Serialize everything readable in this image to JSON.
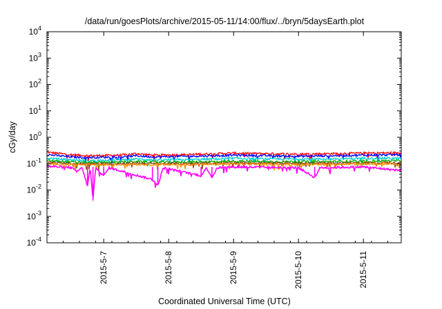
{
  "chart_data": {
    "type": "line",
    "title": "/data/run/goesPlots/archive/2015-05-11/14:00/flux/../bryn/5daysEarth.plot",
    "xlabel": "Coordinated Universal Time (UTC)",
    "ylabel": "cGy/day",
    "y_scale": "log",
    "ylim": [
      0.0001,
      10000
    ],
    "xlim": [
      "2015-05-06T03:00",
      "2015-05-11T14:00"
    ],
    "y_ticks": [
      {
        "base": "10",
        "exp": "-4",
        "value": 0.0001
      },
      {
        "base": "10",
        "exp": "-3",
        "value": 0.001
      },
      {
        "base": "10",
        "exp": "-2",
        "value": 0.01
      },
      {
        "base": "10",
        "exp": "-1",
        "value": 0.1
      },
      {
        "base": "10",
        "exp": "0",
        "value": 1
      },
      {
        "base": "10",
        "exp": "1",
        "value": 10
      },
      {
        "base": "10",
        "exp": "2",
        "value": 100
      },
      {
        "base": "10",
        "exp": "3",
        "value": 1000
      },
      {
        "base": "10",
        "exp": "4",
        "value": 10000
      }
    ],
    "x_ticks": [
      {
        "label": "2015-5-7",
        "value": "2015-05-07T00:00"
      },
      {
        "label": "2015-5-8",
        "value": "2015-05-08T00:00"
      },
      {
        "label": "2015-5-9",
        "value": "2015-05-09T00:00"
      },
      {
        "label": "2015-5-10",
        "value": "2015-05-10T00:00"
      },
      {
        "label": "2015-5-11",
        "value": "2015-05-11T00:00"
      }
    ],
    "grid": false,
    "series": [
      {
        "color": "#ff0000",
        "level": 0.24,
        "values": [
          [
            "2015-05-06T03:00",
            0.27
          ],
          [
            "2015-05-06T12:00",
            0.22
          ],
          [
            "2015-05-06T18:00",
            0.2
          ],
          [
            "2015-05-07T06:00",
            0.21
          ],
          [
            "2015-05-07T12:00",
            0.24
          ],
          [
            "2015-05-07T18:00",
            0.21
          ],
          [
            "2015-05-08T06:00",
            0.22
          ],
          [
            "2015-05-08T18:00",
            0.24
          ],
          [
            "2015-05-09T00:00",
            0.25
          ],
          [
            "2015-05-09T12:00",
            0.24
          ],
          [
            "2015-05-10T00:00",
            0.23
          ],
          [
            "2015-05-10T12:00",
            0.24
          ],
          [
            "2015-05-11T00:00",
            0.25
          ],
          [
            "2015-05-11T14:00",
            0.26
          ]
        ]
      },
      {
        "color": "#0000ff",
        "level": 0.2,
        "values": [
          [
            "2015-05-06T03:00",
            0.22
          ],
          [
            "2015-05-06T12:00",
            0.18
          ],
          [
            "2015-05-06T18:00",
            0.17
          ],
          [
            "2015-05-07T06:00",
            0.18
          ],
          [
            "2015-05-07T12:00",
            0.2
          ],
          [
            "2015-05-07T18:00",
            0.18
          ],
          [
            "2015-05-08T06:00",
            0.19
          ],
          [
            "2015-05-08T18:00",
            0.2
          ],
          [
            "2015-05-09T00:00",
            0.21
          ],
          [
            "2015-05-09T12:00",
            0.2
          ],
          [
            "2015-05-10T00:00",
            0.19
          ],
          [
            "2015-05-10T12:00",
            0.2
          ],
          [
            "2015-05-11T00:00",
            0.21
          ],
          [
            "2015-05-11T14:00",
            0.22
          ]
        ]
      },
      {
        "color": "#00cccc",
        "level": 0.15,
        "values": [
          [
            "2015-05-06T03:00",
            0.16
          ],
          [
            "2015-05-06T12:00",
            0.14
          ],
          [
            "2015-05-06T18:00",
            0.13
          ],
          [
            "2015-05-07T06:00",
            0.14
          ],
          [
            "2015-05-07T12:00",
            0.15
          ],
          [
            "2015-05-07T18:00",
            0.14
          ],
          [
            "2015-05-08T06:00",
            0.14
          ],
          [
            "2015-05-08T18:00",
            0.15
          ],
          [
            "2015-05-09T00:00",
            0.16
          ],
          [
            "2015-05-09T12:00",
            0.15
          ],
          [
            "2015-05-10T00:00",
            0.15
          ],
          [
            "2015-05-10T12:00",
            0.15
          ],
          [
            "2015-05-11T00:00",
            0.16
          ],
          [
            "2015-05-11T14:00",
            0.16
          ]
        ]
      },
      {
        "color": "#00aa00",
        "level": 0.12,
        "values": [
          [
            "2015-05-06T03:00",
            0.13
          ],
          [
            "2015-05-06T12:00",
            0.115
          ],
          [
            "2015-05-06T18:00",
            0.11
          ],
          [
            "2015-05-07T06:00",
            0.115
          ],
          [
            "2015-05-07T12:00",
            0.12
          ],
          [
            "2015-05-07T18:00",
            0.115
          ],
          [
            "2015-05-08T06:00",
            0.115
          ],
          [
            "2015-05-08T18:00",
            0.12
          ],
          [
            "2015-05-09T00:00",
            0.125
          ],
          [
            "2015-05-09T12:00",
            0.12
          ],
          [
            "2015-05-10T00:00",
            0.12
          ],
          [
            "2015-05-10T12:00",
            0.12
          ],
          [
            "2015-05-11T00:00",
            0.125
          ],
          [
            "2015-05-11T14:00",
            0.13
          ]
        ]
      },
      {
        "color": "#8b4513",
        "level": 0.105,
        "values": [
          [
            "2015-05-06T03:00",
            0.11
          ],
          [
            "2015-05-06T12:00",
            0.1
          ],
          [
            "2015-05-06T18:00",
            0.098
          ],
          [
            "2015-05-07T06:00",
            0.1
          ],
          [
            "2015-05-07T12:00",
            0.105
          ],
          [
            "2015-05-07T18:00",
            0.1
          ],
          [
            "2015-05-08T06:00",
            0.1
          ],
          [
            "2015-05-08T18:00",
            0.105
          ],
          [
            "2015-05-09T00:00",
            0.108
          ],
          [
            "2015-05-09T12:00",
            0.105
          ],
          [
            "2015-05-10T00:00",
            0.104
          ],
          [
            "2015-05-10T12:00",
            0.105
          ],
          [
            "2015-05-11T00:00",
            0.108
          ],
          [
            "2015-05-11T14:00",
            0.11
          ]
        ]
      },
      {
        "color": "#ff8c00",
        "level": 0.095,
        "values": [
          [
            "2015-05-06T03:00",
            0.1
          ],
          [
            "2015-05-06T12:00",
            0.092
          ],
          [
            "2015-05-06T18:00",
            0.09
          ],
          [
            "2015-05-07T06:00",
            0.092
          ],
          [
            "2015-05-07T12:00",
            0.095
          ],
          [
            "2015-05-07T18:00",
            0.092
          ],
          [
            "2015-05-08T06:00",
            0.092
          ],
          [
            "2015-05-08T18:00",
            0.095
          ],
          [
            "2015-05-09T00:00",
            0.098
          ],
          [
            "2015-05-09T12:00",
            0.095
          ],
          [
            "2015-05-10T00:00",
            0.094
          ],
          [
            "2015-05-10T12:00",
            0.095
          ],
          [
            "2015-05-11T00:00",
            0.098
          ],
          [
            "2015-05-11T14:00",
            0.1
          ]
        ]
      },
      {
        "color": "#ff00ff",
        "level": 0.075,
        "values": [
          [
            "2015-05-06T03:00",
            0.08
          ],
          [
            "2015-05-06T12:00",
            0.07
          ],
          [
            "2015-05-06T14:00",
            0.05
          ],
          [
            "2015-05-06T16:00",
            0.07
          ],
          [
            "2015-05-06T18:00",
            0.014
          ],
          [
            "2015-05-06T19:00",
            0.07
          ],
          [
            "2015-05-06T20:00",
            0.004
          ],
          [
            "2015-05-06T21:00",
            0.07
          ],
          [
            "2015-05-07T00:00",
            0.035
          ],
          [
            "2015-05-07T02:00",
            0.07
          ],
          [
            "2015-05-07T18:00",
            0.025
          ],
          [
            "2015-05-07T20:00",
            0.015
          ],
          [
            "2015-05-07T22:00",
            0.07
          ],
          [
            "2015-05-08T12:00",
            0.035
          ],
          [
            "2015-05-08T14:00",
            0.07
          ],
          [
            "2015-05-08T16:00",
            0.03
          ],
          [
            "2015-05-08T18:00",
            0.07
          ],
          [
            "2015-05-09T00:00",
            0.075
          ],
          [
            "2015-05-10T00:00",
            0.07
          ],
          [
            "2015-05-10T06:00",
            0.03
          ],
          [
            "2015-05-10T08:00",
            0.07
          ],
          [
            "2015-05-11T00:00",
            0.075
          ],
          [
            "2015-05-11T14:00",
            0.055
          ]
        ]
      }
    ]
  }
}
